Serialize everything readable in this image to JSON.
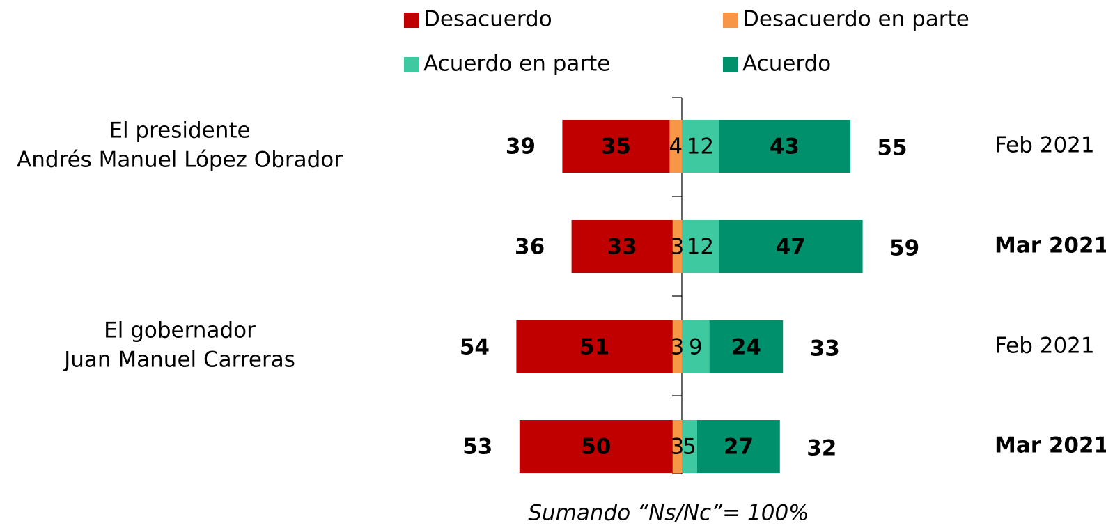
{
  "chart_data": {
    "type": "diverging-bar",
    "legend": "top",
    "groups": [
      [
        "El presidente",
        "Andrés Manuel López Obrador"
      ],
      [
        "El gobernador",
        "Juan Manuel Carreras"
      ]
    ],
    "categories": [
      "Feb 2021",
      "Mar 2021",
      "Feb 2021",
      "Mar 2021"
    ],
    "bold": [
      false,
      true,
      false,
      true
    ],
    "series": [
      {
        "name": "Desacuerdo",
        "color": "#c00000",
        "values": [
          35,
          33,
          51,
          50
        ]
      },
      {
        "name": "Desacuerdo en parte",
        "color": "#f79646",
        "values": [
          4,
          3,
          3,
          3
        ]
      },
      {
        "name": "Acuerdo en parte",
        "color": "#3fc9a1",
        "values": [
          12,
          12,
          9,
          5
        ]
      },
      {
        "name": "Acuerdo",
        "color": "#00906b",
        "values": [
          43,
          47,
          24,
          27
        ]
      }
    ],
    "totals_left": {
      "color": "#c00000",
      "values": [
        39,
        36,
        54,
        53
      ]
    },
    "totals_right": {
      "color": "#1a8a8a",
      "values": [
        55,
        59,
        33,
        32
      ]
    },
    "note": "Sumando “Ns/Nc”= 100%"
  }
}
